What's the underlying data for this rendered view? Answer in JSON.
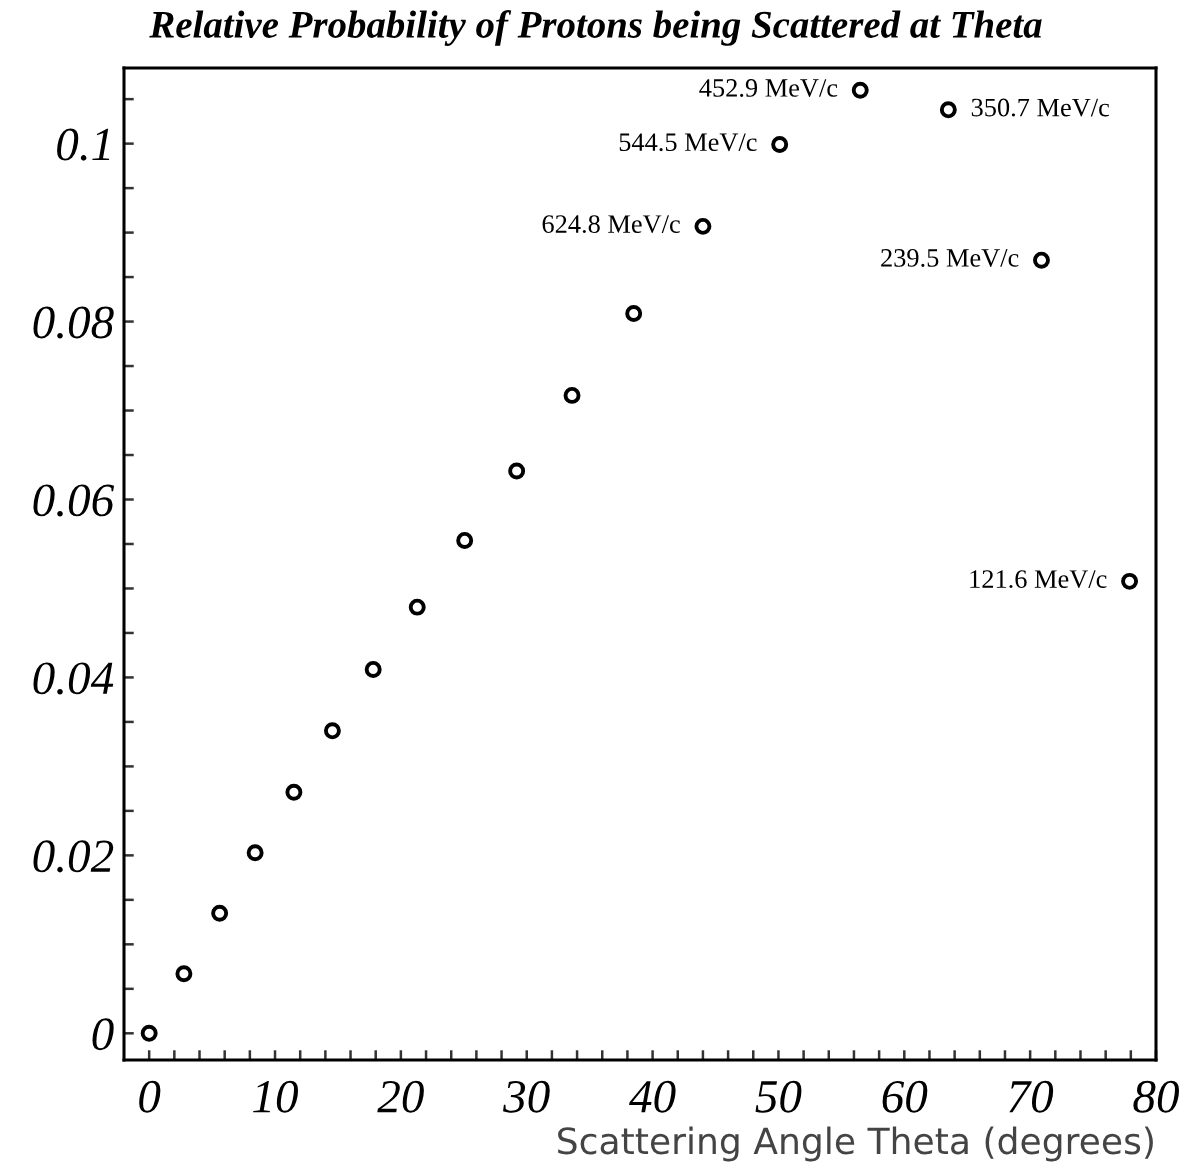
{
  "chart_data": {
    "type": "scatter",
    "title": "Relative Probability of Protons being Scattered at Theta",
    "xlabel": "Scattering Angle Theta (degrees)",
    "x": [
      0,
      2.76,
      5.6,
      8.42,
      11.5,
      14.56,
      17.8,
      21.3,
      25.07,
      29.2,
      33.6,
      38.5,
      44.0,
      50.1,
      56.5,
      63.5,
      70.9,
      77.9
    ],
    "series": [
      {
        "color": "#000000",
        "values": [
          0,
          0.0067,
          0.0135,
          0.0203,
          0.0271,
          0.034,
          0.0409,
          0.0479,
          0.0554,
          0.0632,
          0.0717,
          0.0809,
          0.0907,
          0.0999,
          0.106,
          0.1038,
          0.0869,
          0.0508
        ]
      }
    ],
    "marker": "circle",
    "grid": false,
    "legend": false,
    "xlim": [
      -2,
      80
    ],
    "ylim": [
      -0.003,
      0.1085
    ],
    "xticks": [
      0,
      {
        "value": 2,
        "label": null
      },
      {
        "value": 4,
        "label": null
      },
      {
        "value": 6,
        "label": null
      },
      {
        "value": 8,
        "label": null
      },
      10,
      {
        "value": 12,
        "label": null
      },
      {
        "value": 14,
        "label": null
      },
      {
        "value": 16,
        "label": null
      },
      {
        "value": 18,
        "label": null
      },
      20,
      {
        "value": 22,
        "label": null
      },
      {
        "value": 24,
        "label": null
      },
      {
        "value": 26,
        "label": null
      },
      {
        "value": 28,
        "label": null
      },
      30,
      {
        "value": 32,
        "label": null
      },
      {
        "value": 34,
        "label": null
      },
      {
        "value": 36,
        "label": null
      },
      {
        "value": 38,
        "label": null
      },
      40,
      {
        "value": 42,
        "label": null
      },
      {
        "value": 44,
        "label": null
      },
      {
        "value": 46,
        "label": null
      },
      {
        "value": 48,
        "label": null
      },
      50,
      {
        "value": 52,
        "label": null
      },
      {
        "value": 54,
        "label": null
      },
      {
        "value": 56,
        "label": null
      },
      {
        "value": 58,
        "label": null
      },
      60,
      {
        "value": 62,
        "label": null
      },
      {
        "value": 64,
        "label": null
      },
      {
        "value": 66,
        "label": null
      },
      {
        "value": 68,
        "label": null
      },
      70,
      {
        "value": 72,
        "label": null
      },
      {
        "value": 74,
        "label": null
      },
      {
        "value": 76,
        "label": null
      },
      {
        "value": 78,
        "label": null
      },
      80
    ],
    "yticks": [
      0,
      {
        "value": 0.005,
        "label": null
      },
      {
        "value": 0.01,
        "label": null
      },
      {
        "value": 0.015,
        "label": null
      },
      0.02,
      {
        "value": 0.025,
        "label": null
      },
      {
        "value": 0.03,
        "label": null
      },
      {
        "value": 0.035,
        "label": null
      },
      0.04,
      {
        "value": 0.045,
        "label": null
      },
      {
        "value": 0.05,
        "label": null
      },
      {
        "value": 0.055,
        "label": null
      },
      0.06,
      {
        "value": 0.065,
        "label": null
      },
      {
        "value": 0.07,
        "label": null
      },
      {
        "value": 0.075,
        "label": null
      },
      0.08,
      {
        "value": 0.085,
        "label": null
      },
      {
        "value": 0.09,
        "label": null
      },
      {
        "value": 0.095,
        "label": null
      },
      0.1,
      {
        "value": 0.105,
        "label": null
      }
    ],
    "annotations": [
      {
        "text": "624.8 MeV/c",
        "x": 44.0,
        "y": 0.0907
      },
      {
        "text": "544.5 MeV/c",
        "x": 50.1,
        "y": 0.0999
      },
      {
        "text": "452.9 MeV/c",
        "x": 56.5,
        "y": 0.106
      },
      {
        "text": "350.7 MeV/c",
        "x": 63.5,
        "y": 0.1038
      },
      {
        "text": "239.5 MeV/c",
        "x": 70.9,
        "y": 0.0869
      },
      {
        "text": "121.6 MeV/c",
        "x": 77.9,
        "y": 0.0508
      }
    ]
  }
}
